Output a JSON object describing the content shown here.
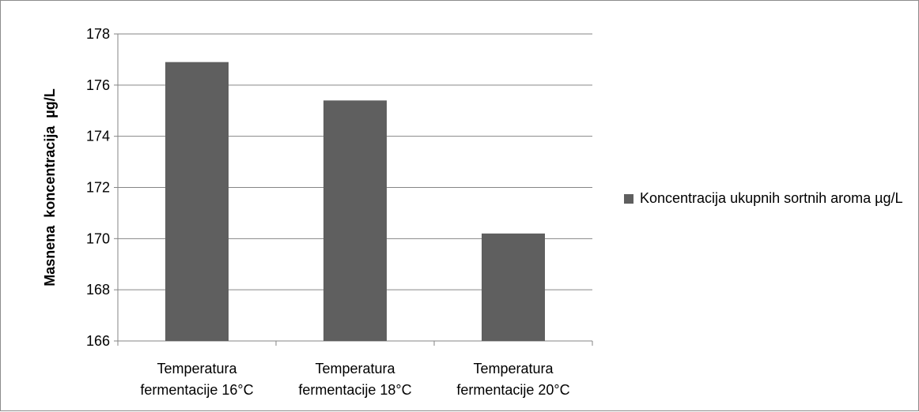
{
  "chart_data": {
    "type": "bar",
    "categories": [
      "Temperatura fermentacije 16°C",
      "Temperatura fermentacije 18°C",
      "Temperatura fermentacije 20°C"
    ],
    "category_lines": [
      [
        "Temperatura",
        "fermentacije 16°C"
      ],
      [
        "Temperatura",
        "fermentacije 18°C"
      ],
      [
        "Temperatura",
        "fermentacije 20°C"
      ]
    ],
    "series": [
      {
        "name": "Koncentracija ukupnih sortnih aroma µg/L",
        "values": [
          176.9,
          175.4,
          170.2
        ],
        "color": "#5f5f5f"
      }
    ],
    "title": "",
    "xlabel": "",
    "ylabel": "Masnena  koncentracija  µg/L",
    "ylim": [
      166,
      178
    ],
    "yticks": [
      166,
      168,
      170,
      172,
      174,
      176,
      178
    ],
    "grid": true,
    "legend_position": "right",
    "gridline_color": "#868686"
  }
}
